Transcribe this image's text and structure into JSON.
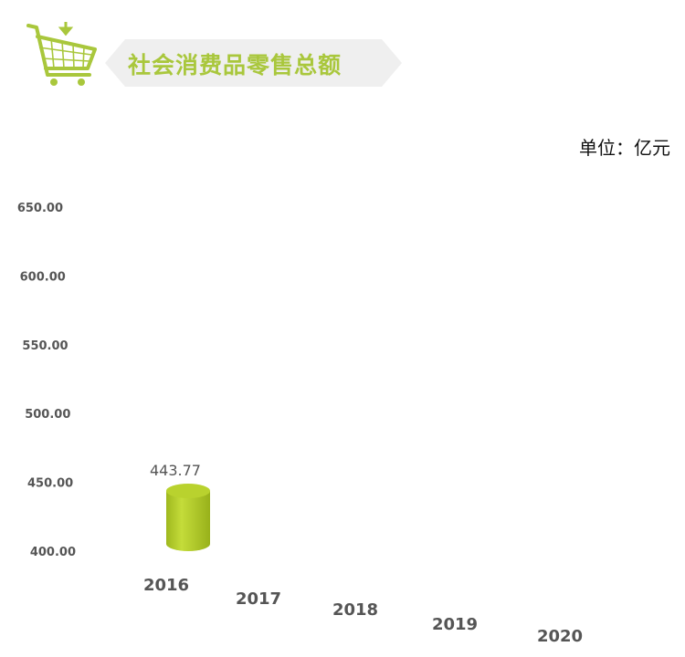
{
  "header": {
    "title": "社会消费品零售总额",
    "icon": "shopping-cart-icon",
    "accent": "#a9c73c"
  },
  "unit_label": "单位：亿元",
  "chart_data": {
    "type": "bar",
    "style": "3d-cylinder",
    "title": "社会消费品零售总额",
    "categories": [
      "2016",
      "2017",
      "2018",
      "2019",
      "2020"
    ],
    "values": [
      443.77,
      null,
      null,
      null,
      null
    ],
    "data_labels": [
      "443.77",
      "",
      "",
      "",
      ""
    ],
    "yticks": [
      "400.00",
      "450.00",
      "500.00",
      "550.00",
      "600.00",
      "650.00"
    ],
    "ylim": [
      400,
      650
    ],
    "grid": false,
    "color": "#b5cf2c"
  }
}
